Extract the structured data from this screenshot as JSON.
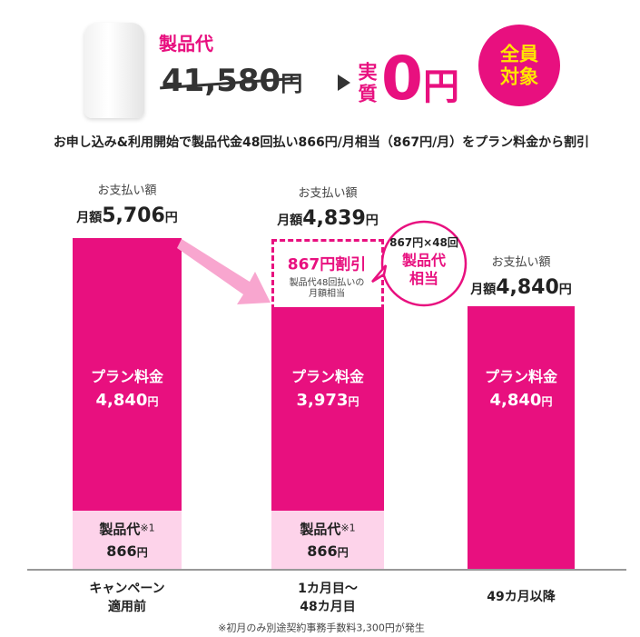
{
  "header": {
    "product_label": "製品代",
    "original_price": "41,580",
    "price_unit": "円",
    "jisshitsu_1": "実",
    "jisshitsu_2": "質",
    "zero": "0",
    "zero_unit": "円",
    "badge_1": "全員",
    "badge_2": "対象"
  },
  "subtitle": "お申し込み&利用開始で製品代金48回払い866円/月相当（867円/月）をプラン料金から割引",
  "columns": [
    {
      "pay_label": "お支払い額",
      "monthly_label": "月額",
      "amount": "5,706",
      "unit": "円",
      "plan_label": "プラン料金",
      "plan_amount": "4,840",
      "plan_unit": "円",
      "product_label": "製品代",
      "note_mark": "※1",
      "product_amount": "866",
      "product_unit": "円",
      "x_label_1": "キャンペーン",
      "x_label_2": "適用前"
    },
    {
      "pay_label": "お支払い額",
      "monthly_label": "月額",
      "amount": "4,839",
      "unit": "円",
      "plan_label": "プラン料金",
      "plan_amount": "3,973",
      "plan_unit": "円",
      "product_label": "製品代",
      "note_mark": "※1",
      "product_amount": "866",
      "product_unit": "円",
      "x_label_1": "1カ月目～",
      "x_label_2": "48カ月目"
    },
    {
      "pay_label": "お支払い額",
      "monthly_label": "月額",
      "amount": "4,840",
      "unit": "円",
      "plan_label": "プラン料金",
      "plan_amount": "4,840",
      "plan_unit": "円",
      "x_label_1": "49カ月以降"
    }
  ],
  "discount": {
    "title": "867円割引",
    "sub_1": "製品代48回払いの",
    "sub_2": "月額相当"
  },
  "bubble": {
    "line1": "867円×48回",
    "line2": "製品代",
    "line3": "相当"
  },
  "footnote": "※初月のみ別途契約事務手数料3,300円が発生"
}
